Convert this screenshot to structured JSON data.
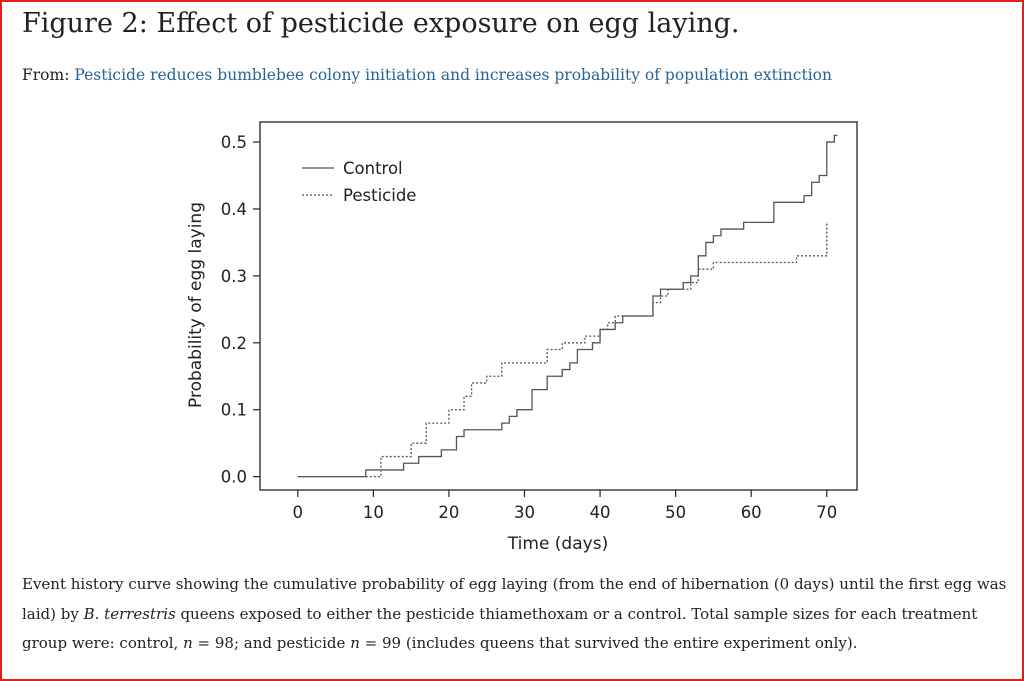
{
  "figure": {
    "title": "Figure 2: Effect of pesticide exposure on egg laying.",
    "from_label": "From:",
    "source_link": "Pesticide reduces bumblebee colony initiation and increases probability of population extinction"
  },
  "caption": {
    "part1": "Event history curve showing the cumulative probability of egg laying (from the end of hibernation (0 days) until the first egg was laid) by ",
    "species_genus": "B. ",
    "species_epithet": "terrestris",
    "part2": " queens exposed to either the pesticide thiamethoxam or a control. Total sample sizes for each treatment group were: control, ",
    "n_symbol_1": "n",
    "part3": " = 98; and pesticide ",
    "n_symbol_2": "n",
    "part4": " = 99 (includes queens that survived the entire experiment only)."
  },
  "colors": {
    "frame_border": "#e02020",
    "link": "#2a6496",
    "text": "#222222",
    "series_line": "#555555"
  },
  "chart_data": {
    "type": "line",
    "step": true,
    "xlabel": "Time (days)",
    "ylabel": "Probability of egg laying",
    "xlim": [
      -5,
      74
    ],
    "ylim": [
      -0.02,
      0.53
    ],
    "xticks": [
      0,
      10,
      20,
      30,
      40,
      50,
      60,
      70
    ],
    "yticks": [
      0.0,
      0.1,
      0.2,
      0.3,
      0.4,
      0.5
    ],
    "ytick_labels": [
      "0.0",
      "0.1",
      "0.2",
      "0.3",
      "0.4",
      "0.5"
    ],
    "legend_position": "top-left",
    "grid": false,
    "series": [
      {
        "name": "Control",
        "line_style": "solid",
        "points": [
          [
            0,
            0.0
          ],
          [
            9,
            0.01
          ],
          [
            14,
            0.02
          ],
          [
            16,
            0.03
          ],
          [
            19,
            0.04
          ],
          [
            21,
            0.06
          ],
          [
            22,
            0.07
          ],
          [
            27,
            0.08
          ],
          [
            28,
            0.09
          ],
          [
            29,
            0.1
          ],
          [
            31,
            0.13
          ],
          [
            33,
            0.15
          ],
          [
            35,
            0.16
          ],
          [
            36,
            0.17
          ],
          [
            37,
            0.19
          ],
          [
            39,
            0.2
          ],
          [
            40,
            0.22
          ],
          [
            42,
            0.23
          ],
          [
            43,
            0.24
          ],
          [
            47,
            0.27
          ],
          [
            48,
            0.28
          ],
          [
            51,
            0.29
          ],
          [
            52,
            0.3
          ],
          [
            53,
            0.33
          ],
          [
            54,
            0.35
          ],
          [
            55,
            0.36
          ],
          [
            56,
            0.37
          ],
          [
            59,
            0.38
          ],
          [
            63,
            0.41
          ],
          [
            67,
            0.42
          ],
          [
            68,
            0.44
          ],
          [
            69,
            0.45
          ],
          [
            70,
            0.5
          ],
          [
            71,
            0.51
          ]
        ]
      },
      {
        "name": "Pesticide",
        "line_style": "dotted",
        "points": [
          [
            0,
            0.0
          ],
          [
            11,
            0.03
          ],
          [
            15,
            0.05
          ],
          [
            17,
            0.08
          ],
          [
            20,
            0.1
          ],
          [
            22,
            0.12
          ],
          [
            23,
            0.14
          ],
          [
            25,
            0.15
          ],
          [
            27,
            0.17
          ],
          [
            33,
            0.19
          ],
          [
            35,
            0.2
          ],
          [
            38,
            0.21
          ],
          [
            40,
            0.22
          ],
          [
            41,
            0.23
          ],
          [
            42,
            0.24
          ],
          [
            47,
            0.26
          ],
          [
            48,
            0.27
          ],
          [
            49,
            0.28
          ],
          [
            52,
            0.29
          ],
          [
            53,
            0.31
          ],
          [
            55,
            0.32
          ],
          [
            66,
            0.33
          ],
          [
            70,
            0.38
          ]
        ]
      }
    ]
  }
}
